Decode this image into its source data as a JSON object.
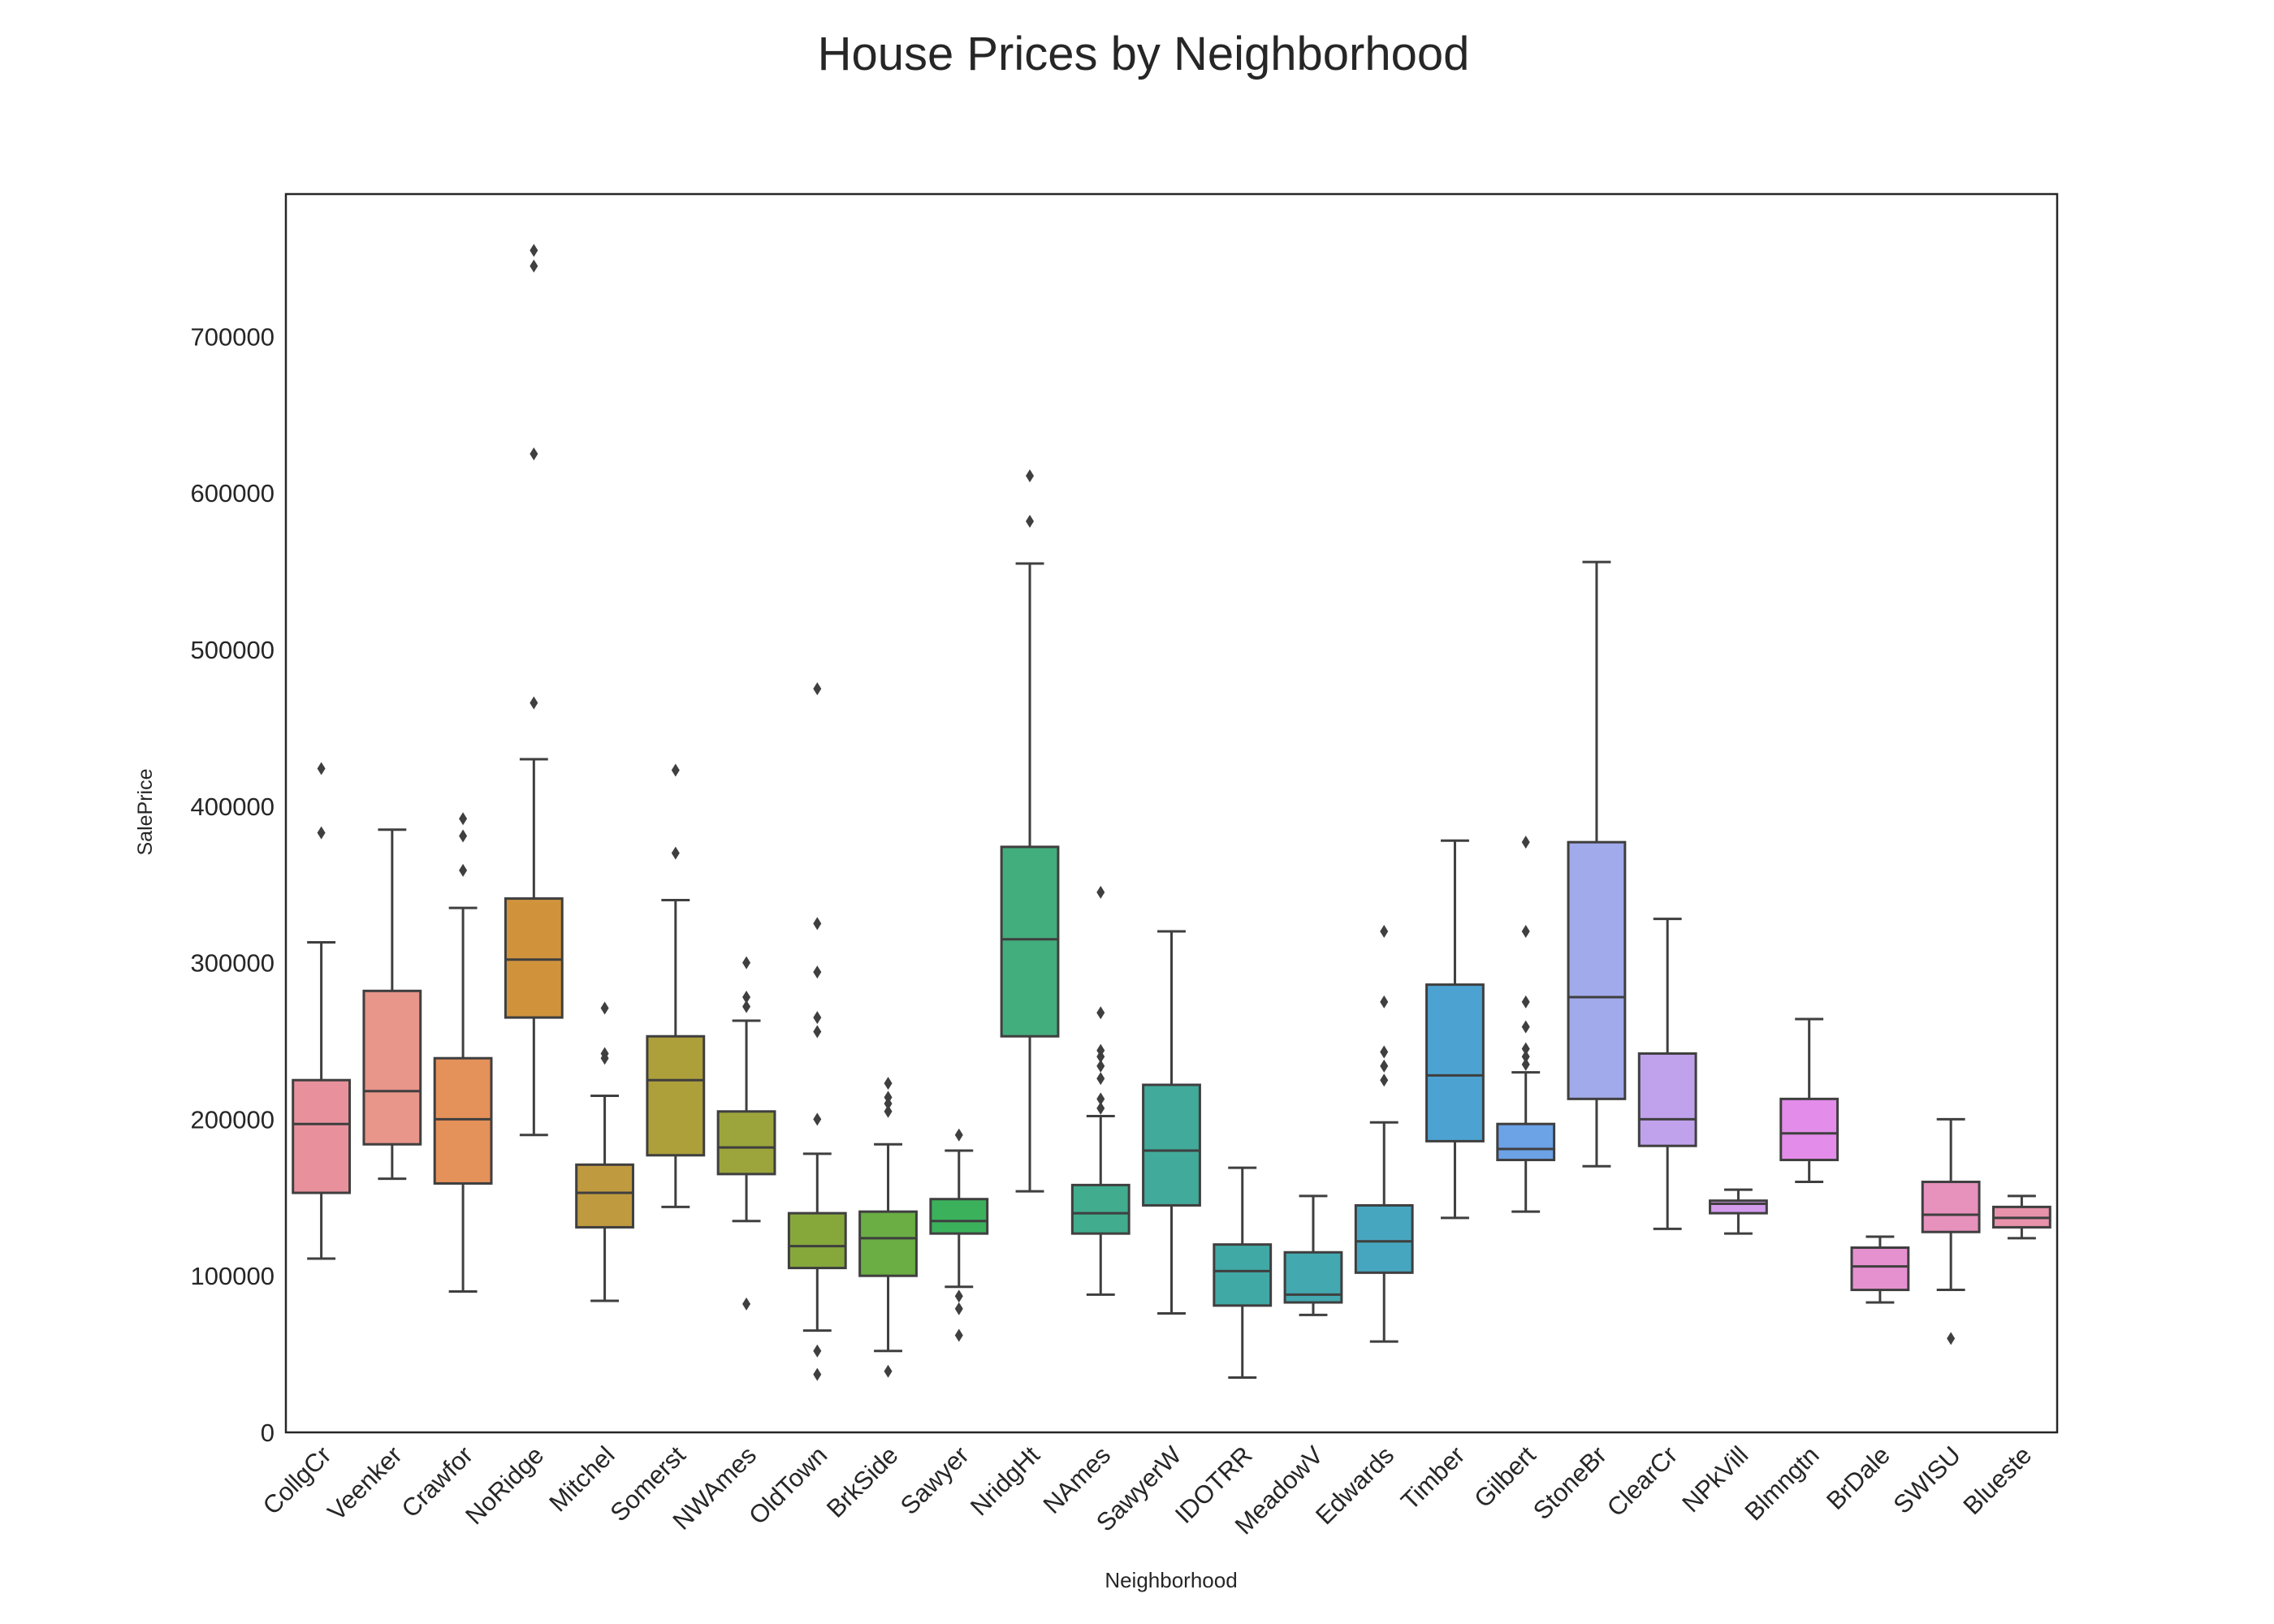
{
  "chart_data": {
    "type": "box",
    "title": "House Prices by Neighborhood",
    "xlabel": "Neighborhood",
    "ylabel": "SalePrice",
    "ylim": [
      0,
      791000
    ],
    "yticks": [
      0,
      100000,
      200000,
      300000,
      400000,
      500000,
      600000,
      700000
    ],
    "ytick_labels": [
      "0",
      "100000",
      "200000",
      "300000",
      "400000",
      "500000",
      "600000",
      "700000"
    ],
    "grid": false,
    "line_color": "#3f3f3f",
    "categories": [
      "CollgCr",
      "Veenker",
      "Crawfor",
      "NoRidge",
      "Mitchel",
      "Somerst",
      "NWAmes",
      "OldTown",
      "BrkSide",
      "Sawyer",
      "NridgHt",
      "NAmes",
      "SawyerW",
      "IDOTRR",
      "MeadowV",
      "Edwards",
      "Timber",
      "Gilbert",
      "StoneBr",
      "ClearCr",
      "NPkVill",
      "Blmngtn",
      "BrDale",
      "SWISU",
      "Blueste"
    ],
    "boxes": [
      {
        "color": "#e8919c",
        "whislo": 111000,
        "q1": 153000,
        "med": 197000,
        "q3": 225000,
        "whishi": 313000,
        "fliers": [
          383000,
          424000
        ]
      },
      {
        "color": "#e8958a",
        "whislo": 162000,
        "q1": 184000,
        "med": 218000,
        "q3": 282000,
        "whishi": 385000,
        "fliers": []
      },
      {
        "color": "#e5915a",
        "whislo": 90000,
        "q1": 159000,
        "med": 200000,
        "q3": 239000,
        "whishi": 335000,
        "fliers": [
          359000,
          381000,
          392000
        ]
      },
      {
        "color": "#d0933c",
        "whislo": 190000,
        "q1": 265000,
        "med": 302000,
        "q3": 341000,
        "whishi": 430000,
        "fliers": [
          466000,
          625000,
          745000,
          755000
        ]
      },
      {
        "color": "#c09a3f",
        "whislo": 84000,
        "q1": 131000,
        "med": 153000,
        "q3": 171000,
        "whishi": 215000,
        "fliers": [
          239000,
          242000,
          271000
        ]
      },
      {
        "color": "#ad9f3a",
        "whislo": 144000,
        "q1": 177000,
        "med": 225000,
        "q3": 253000,
        "whishi": 340000,
        "fliers": [
          370000,
          423000
        ]
      },
      {
        "color": "#9ba53c",
        "whislo": 135000,
        "q1": 165000,
        "med": 182000,
        "q3": 205000,
        "whishi": 263000,
        "fliers": [
          82000,
          272000,
          278000,
          300000
        ]
      },
      {
        "color": "#86a83b",
        "whislo": 65000,
        "q1": 105000,
        "med": 119000,
        "q3": 140000,
        "whishi": 178000,
        "fliers": [
          37000,
          52000,
          200000,
          256000,
          265000,
          294000,
          325000,
          475000
        ]
      },
      {
        "color": "#6bae44",
        "whislo": 52000,
        "q1": 100000,
        "med": 124000,
        "q3": 141000,
        "whishi": 184000,
        "fliers": [
          39000,
          205000,
          210000,
          214000,
          223000
        ]
      },
      {
        "color": "#3bb15b",
        "whislo": 93000,
        "q1": 127000,
        "med": 135000,
        "q3": 149000,
        "whishi": 180000,
        "fliers": [
          62000,
          79000,
          87000,
          190000
        ]
      },
      {
        "color": "#43ae7d",
        "whislo": 154000,
        "q1": 253000,
        "med": 315000,
        "q3": 374000,
        "whishi": 555000,
        "fliers": [
          582000,
          611000
        ]
      },
      {
        "color": "#41ac8e",
        "whislo": 88000,
        "q1": 127000,
        "med": 140000,
        "q3": 158000,
        "whishi": 202000,
        "fliers": [
          207000,
          213000,
          226000,
          234000,
          240000,
          244000,
          268000,
          345000
        ]
      },
      {
        "color": "#42aa9a",
        "whislo": 76000,
        "q1": 145000,
        "med": 180000,
        "q3": 222000,
        "whishi": 320000,
        "fliers": []
      },
      {
        "color": "#41a9a5",
        "whislo": 35000,
        "q1": 81000,
        "med": 103000,
        "q3": 120000,
        "whishi": 169000,
        "fliers": []
      },
      {
        "color": "#43a8b0",
        "whislo": 75000,
        "q1": 83000,
        "med": 88000,
        "q3": 115000,
        "whishi": 151000,
        "fliers": []
      },
      {
        "color": "#47a6bf",
        "whislo": 58000,
        "q1": 102000,
        "med": 122000,
        "q3": 145000,
        "whishi": 198000,
        "fliers": [
          225000,
          234000,
          243000,
          275000,
          320000
        ]
      },
      {
        "color": "#4ca3d2",
        "whislo": 137000,
        "q1": 186000,
        "med": 228000,
        "q3": 286000,
        "whishi": 378000,
        "fliers": []
      },
      {
        "color": "#6ca2e6",
        "whislo": 141000,
        "q1": 174000,
        "med": 181000,
        "q3": 197000,
        "whishi": 230000,
        "fliers": [
          235000,
          240000,
          245000,
          259000,
          275000,
          320000,
          377000
        ]
      },
      {
        "color": "#a1aaea",
        "whislo": 170000,
        "q1": 213000,
        "med": 278000,
        "q3": 377000,
        "whishi": 556000,
        "fliers": []
      },
      {
        "color": "#c0a2ec",
        "whislo": 130000,
        "q1": 183000,
        "med": 200000,
        "q3": 242000,
        "whishi": 328000,
        "fliers": []
      },
      {
        "color": "#d49ced",
        "whislo": 127000,
        "q1": 140000,
        "med": 146000,
        "q3": 148000,
        "whishi": 155000,
        "fliers": []
      },
      {
        "color": "#e38ce9",
        "whislo": 160000,
        "q1": 174000,
        "med": 191000,
        "q3": 213000,
        "whishi": 264000,
        "fliers": []
      },
      {
        "color": "#e591d0",
        "whislo": 83000,
        "q1": 91000,
        "med": 106000,
        "q3": 118000,
        "whishi": 125000,
        "fliers": []
      },
      {
        "color": "#e791bd",
        "whislo": 91000,
        "q1": 128000,
        "med": 139000,
        "q3": 160000,
        "whishi": 200000,
        "fliers": [
          60000
        ]
      },
      {
        "color": "#e892ab",
        "whislo": 124000,
        "q1": 131000,
        "med": 137000,
        "q3": 144000,
        "whishi": 151000,
        "fliers": []
      }
    ]
  }
}
